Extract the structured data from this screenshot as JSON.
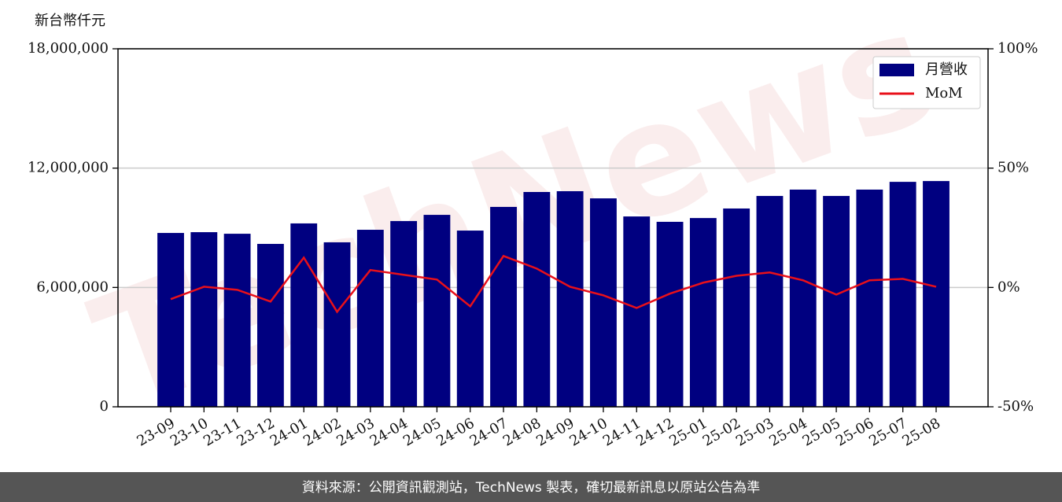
{
  "chart_data": {
    "type": "bar",
    "watermark": "TechNews",
    "y_label": "新台幣仟元",
    "footer": "資料來源：公開資訊觀測站，TechNews 製表，確切最新訊息以原站公告為準",
    "categories": [
      "23-09",
      "23-10",
      "23-11",
      "23-12",
      "24-01",
      "24-02",
      "24-03",
      "24-04",
      "24-05",
      "24-06",
      "24-07",
      "24-08",
      "24-09",
      "24-10",
      "24-11",
      "24-12",
      "25-01",
      "25-02",
      "25-03",
      "25-04",
      "25-05",
      "25-06",
      "25-07",
      "25-08"
    ],
    "series": [
      {
        "name": "月營收",
        "type": "bar",
        "color": "#000080",
        "values": [
          8740000,
          8780000,
          8700000,
          8190000,
          9220000,
          8270000,
          8900000,
          9340000,
          9650000,
          8860000,
          10050000,
          10800000,
          10840000,
          10480000,
          9570000,
          9300000,
          9490000,
          9970000,
          10600000,
          10920000,
          10600000,
          10920000,
          11310000,
          11350000
        ]
      },
      {
        "name": "MoM",
        "type": "line",
        "axis": "y2",
        "color": "#e8101a",
        "values": [
          -4.9,
          0.3,
          -1.0,
          -5.9,
          12.5,
          -10.2,
          7.3,
          5.3,
          3.3,
          -7.9,
          13.2,
          7.9,
          0.3,
          -3.3,
          -8.6,
          -2.6,
          2.0,
          4.9,
          6.3,
          3.0,
          -3.0,
          3.0,
          3.6,
          0.3
        ]
      }
    ],
    "ylim": [
      0,
      18000000
    ],
    "yticks": [
      0,
      {
        "value": 6000000,
        "label": "6,000,000"
      },
      {
        "value": 12000000,
        "label": "12,000,000"
      },
      {
        "value": 18000000,
        "label": "18,000,000"
      }
    ],
    "y2lim": [
      -50,
      100
    ],
    "y2ticks": [
      {
        "value": -50,
        "label": "-50%"
      },
      {
        "value": 0,
        "label": "0%"
      },
      {
        "value": 50,
        "label": "50%"
      },
      {
        "value": 100,
        "label": "100%"
      }
    ],
    "grid": true,
    "legend": "upper right"
  }
}
